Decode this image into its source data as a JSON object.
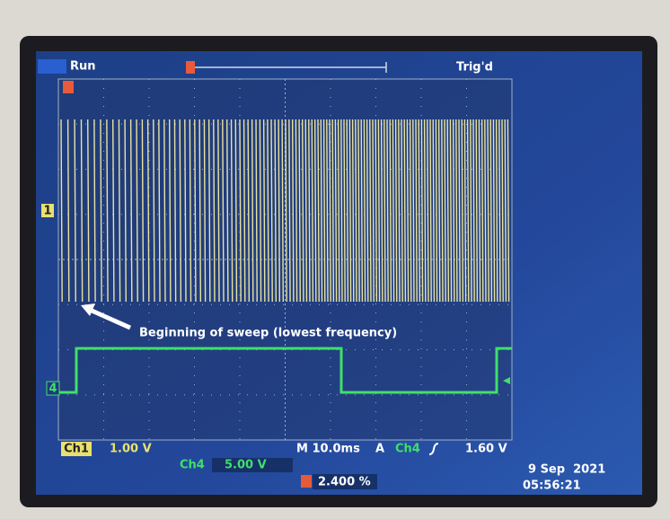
{
  "status": {
    "mode": "Run",
    "trigger": "Trig'd"
  },
  "annotation": "Beginning of sweep (lowest frequency)",
  "markers": {
    "ch1": "1",
    "ch4": "4"
  },
  "readout": {
    "ch1_label": "Ch1",
    "ch1_scale": "1.00 V",
    "timebase": "M 10.0ms",
    "trigger_source_label": "A",
    "trigger_channel": "Ch4",
    "trigger_level": "1.60 V",
    "ch4_label": "Ch4",
    "ch4_scale": "5.00 V",
    "trigger_position": "2.400 %",
    "date": "9 Sep  2021",
    "time": "05:56:21"
  }
}
